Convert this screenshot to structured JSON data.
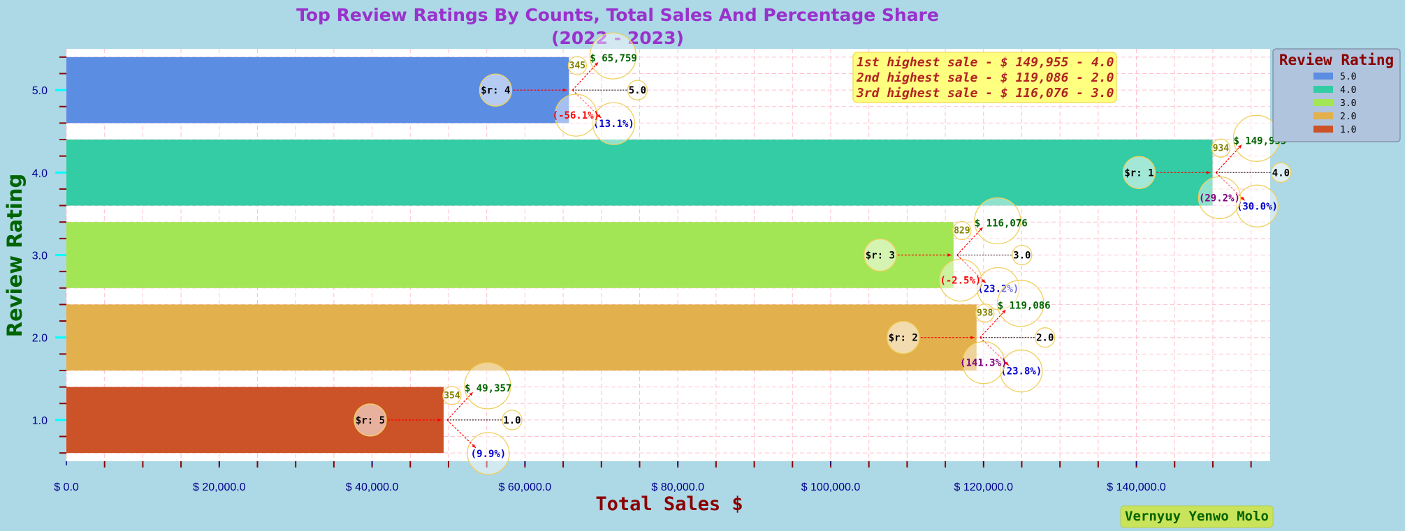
{
  "colors": {
    "background": "#add8e6",
    "plot_background": "#ffffff",
    "title": "#9932cc",
    "xlabel": "#8b0000",
    "ylabel": "#006400",
    "tick_text": "#00008b",
    "ytick_marker": "#00ffff",
    "minor_tick": "#8b0000",
    "grid": "#ffc0cb",
    "arrow": "#ff0000",
    "circle_edge": "#f0d060",
    "annotation_box_bg": "#ffff80",
    "annotation_text": "#b22222",
    "author_box_bg": "#c9e45a",
    "author_text": "#006400",
    "legend_bg": "#b0c4de",
    "legend_title": "#8b0000",
    "sales_label": "#006400",
    "count_label": "#808000",
    "share_label": "#0000cd",
    "change_negative": "#ff0000",
    "change_positive": "#800080"
  },
  "chart_data": {
    "type": "bar",
    "orientation": "horizontal",
    "title": "Top Review Ratings By Counts, Total Sales And Percentage Share\n(2022 - 2023)",
    "xlabel": "Total Sales $",
    "ylabel": "Review Rating",
    "xlim": [
      0,
      157500
    ],
    "ylim": [
      0.5,
      5.5
    ],
    "xticks": [
      {
        "value": 0,
        "label": "$ 0.0"
      },
      {
        "value": 20000,
        "label": "$ 20,000.0"
      },
      {
        "value": 40000,
        "label": "$ 40,000.0"
      },
      {
        "value": 60000,
        "label": "$ 60,000.0"
      },
      {
        "value": 80000,
        "label": "$ 80,000.0"
      },
      {
        "value": 100000,
        "label": "$ 100,000.0"
      },
      {
        "value": 120000,
        "label": "$ 120,000.0"
      },
      {
        "value": 140000,
        "label": "$ 140,000.0"
      }
    ],
    "yticks": [
      {
        "value": 1,
        "label": "1.0"
      },
      {
        "value": 2,
        "label": "2.0"
      },
      {
        "value": 3,
        "label": "3.0"
      },
      {
        "value": 4,
        "label": "4.0"
      },
      {
        "value": 5,
        "label": "5.0"
      }
    ],
    "grid": true,
    "bars": [
      {
        "rating": 5,
        "rating_label": "5.0",
        "sales": 65759,
        "sales_label": "$ 65,759",
        "count": "345",
        "rank": "$r: 4",
        "change": "(-56.1%)",
        "change_sign": "neg",
        "share": "(13.1%)",
        "color": "#5b8de3"
      },
      {
        "rating": 4,
        "rating_label": "4.0",
        "sales": 149955,
        "sales_label": "$ 149,955",
        "count": "934",
        "rank": "$r: 1",
        "change": "(29.2%)",
        "change_sign": "pos",
        "share": "(30.0%)",
        "color": "#33cca5"
      },
      {
        "rating": 3,
        "rating_label": "3.0",
        "sales": 116076,
        "sales_label": "$ 116,076",
        "count": "829",
        "rank": "$r: 3",
        "change": "(-2.5%)",
        "change_sign": "neg",
        "share": "(23.2%)",
        "color": "#a3e655"
      },
      {
        "rating": 2,
        "rating_label": "2.0",
        "sales": 119086,
        "sales_label": "$ 119,086",
        "count": "938",
        "rank": "$r: 2",
        "change": "(141.3%)",
        "change_sign": "pos",
        "share": "(23.8%)",
        "color": "#e2b04c"
      },
      {
        "rating": 1,
        "rating_label": "1.0",
        "sales": 49357,
        "sales_label": "$ 49,357",
        "count": "354",
        "rank": "$r: 5",
        "change": "",
        "change_sign": "none",
        "share": "(9.9%)",
        "color": "#cc5227"
      }
    ],
    "legend": {
      "title": "Review Rating",
      "placement": "top-right",
      "entries": [
        {
          "label": "5.0",
          "color": "#5b8de3"
        },
        {
          "label": "4.0",
          "color": "#33cca5"
        },
        {
          "label": "3.0",
          "color": "#a3e655"
        },
        {
          "label": "2.0",
          "color": "#e2b04c"
        },
        {
          "label": "1.0",
          "color": "#cc5227"
        }
      ]
    },
    "annotations": [
      "1st highest sale - $ 149,955 - 4.0",
      "2nd highest sale - $ 119,086 - 2.0",
      "3rd highest sale - $ 116,076 - 3.0"
    ],
    "author": "Vernyuy Yenwo Molo"
  }
}
